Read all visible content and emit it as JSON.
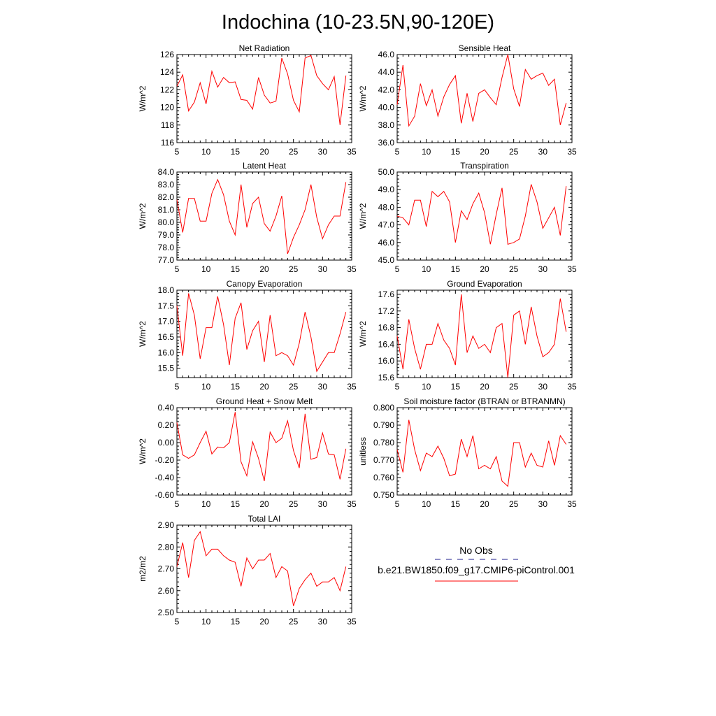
{
  "figure_title": "Indochina (10-23.5N,90-120E)",
  "legend": {
    "obs_label": "No Obs",
    "obs_color": "#1e1e8c",
    "model_label": "b.e21.BW1850.f09_g17.CMIP6-piControl.001",
    "model_color": "#ff0000"
  },
  "colors": {
    "line": "#ff0000",
    "axis": "#000000"
  },
  "chart_data": [
    {
      "type": "line",
      "title": "Net Radiation",
      "ylabel": "W/m^2",
      "xlim": [
        5,
        35
      ],
      "xticks": [
        5,
        10,
        15,
        20,
        25,
        30,
        35
      ],
      "ylim": [
        116,
        126
      ],
      "yticks": [
        116,
        118,
        120,
        122,
        124,
        126
      ],
      "ytick_labels": [
        "116",
        "118",
        "120",
        "122",
        "124",
        "126"
      ],
      "x": [
        5,
        6,
        7,
        8,
        9,
        10,
        11,
        12,
        13,
        14,
        15,
        16,
        17,
        18,
        19,
        20,
        21,
        22,
        23,
        24,
        25,
        26,
        27,
        28,
        29,
        30,
        31,
        32,
        33,
        34
      ],
      "values": [
        122.4,
        123.7,
        119.6,
        120.6,
        122.8,
        120.4,
        124.1,
        122.3,
        123.4,
        122.8,
        122.9,
        120.9,
        120.8,
        119.8,
        123.4,
        121.4,
        120.5,
        120.7,
        125.6,
        123.8,
        120.8,
        119.5,
        125.6,
        125.9,
        123.6,
        122.7,
        122.0,
        123.5,
        118.0,
        123.6
      ]
    },
    {
      "type": "line",
      "title": "Sensible Heat",
      "ylabel": "W/m^2",
      "xlim": [
        5,
        35
      ],
      "xticks": [
        5,
        10,
        15,
        20,
        25,
        30,
        35
      ],
      "ylim": [
        36,
        46
      ],
      "yticks": [
        36,
        38,
        40,
        42,
        44,
        46
      ],
      "ytick_labels": [
        "36.0",
        "38.0",
        "40.0",
        "42.0",
        "44.0",
        "46.0"
      ],
      "x": [
        5,
        6,
        7,
        8,
        9,
        10,
        11,
        12,
        13,
        14,
        15,
        16,
        17,
        18,
        19,
        20,
        21,
        22,
        23,
        24,
        25,
        26,
        27,
        28,
        29,
        30,
        31,
        32,
        33,
        34
      ],
      "values": [
        40.3,
        44.8,
        37.9,
        39.0,
        42.7,
        40.2,
        42.0,
        39.0,
        41.2,
        42.6,
        43.6,
        38.2,
        41.6,
        38.4,
        41.6,
        42.0,
        41.1,
        40.3,
        43.4,
        46.0,
        42.1,
        40.1,
        44.3,
        43.2,
        43.6,
        43.9,
        42.5,
        43.2,
        38.0,
        40.5
      ]
    },
    {
      "type": "line",
      "title": "Latent Heat",
      "ylabel": "W/m^2",
      "xlim": [
        5,
        35
      ],
      "xticks": [
        5,
        10,
        15,
        20,
        25,
        30,
        35
      ],
      "ylim": [
        77,
        84
      ],
      "yticks": [
        77,
        78,
        79,
        80,
        81,
        82,
        83,
        84
      ],
      "ytick_labels": [
        "77.0",
        "78.0",
        "79.0",
        "80.0",
        "81.0",
        "82.0",
        "83.0",
        "84.0"
      ],
      "x": [
        5,
        6,
        7,
        8,
        9,
        10,
        11,
        12,
        13,
        14,
        15,
        16,
        17,
        18,
        19,
        20,
        21,
        22,
        23,
        24,
        25,
        26,
        27,
        28,
        29,
        30,
        31,
        32,
        33,
        34
      ],
      "values": [
        81.8,
        79.2,
        81.9,
        81.9,
        80.1,
        80.1,
        82.3,
        83.4,
        82.2,
        80.1,
        79.0,
        83.0,
        79.6,
        81.5,
        82.0,
        79.9,
        79.3,
        80.5,
        82.1,
        77.5,
        78.8,
        79.8,
        81.0,
        83.0,
        80.4,
        78.7,
        79.8,
        80.5,
        80.5,
        83.2
      ]
    },
    {
      "type": "line",
      "title": "Transpiration",
      "ylabel": "W/m^2",
      "xlim": [
        5,
        35
      ],
      "xticks": [
        5,
        10,
        15,
        20,
        25,
        30,
        35
      ],
      "ylim": [
        45,
        50
      ],
      "yticks": [
        45,
        46,
        47,
        48,
        49,
        50
      ],
      "ytick_labels": [
        "45.0",
        "46.0",
        "47.0",
        "48.0",
        "49.0",
        "50.0"
      ],
      "x": [
        5,
        6,
        7,
        8,
        9,
        10,
        11,
        12,
        13,
        14,
        15,
        16,
        17,
        18,
        19,
        20,
        21,
        22,
        23,
        24,
        25,
        26,
        27,
        28,
        29,
        30,
        31,
        32,
        33,
        34
      ],
      "values": [
        47.5,
        47.4,
        47.0,
        48.4,
        48.4,
        46.9,
        48.9,
        48.6,
        48.9,
        48.3,
        46.0,
        47.8,
        47.3,
        48.2,
        48.8,
        47.7,
        45.9,
        47.6,
        49.1,
        45.9,
        46.0,
        46.2,
        47.5,
        49.3,
        48.3,
        46.8,
        47.4,
        48.0,
        46.4,
        49.2
      ]
    },
    {
      "type": "line",
      "title": "Canopy Evaporation",
      "ylabel": "W/m^2",
      "xlim": [
        5,
        35
      ],
      "xticks": [
        5,
        10,
        15,
        20,
        25,
        30,
        35
      ],
      "ylim": [
        15.2,
        18.0
      ],
      "yticks": [
        15.5,
        16.0,
        16.5,
        17.0,
        17.5,
        18.0
      ],
      "ytick_labels": [
        "15.5",
        "16.0",
        "16.5",
        "17.0",
        "17.5",
        "18.0"
      ],
      "x": [
        5,
        6,
        7,
        8,
        9,
        10,
        11,
        12,
        13,
        14,
        15,
        16,
        17,
        18,
        19,
        20,
        21,
        22,
        23,
        24,
        25,
        26,
        27,
        28,
        29,
        30,
        31,
        32,
        33,
        34
      ],
      "values": [
        17.5,
        15.9,
        17.9,
        17.2,
        15.8,
        16.8,
        16.8,
        17.8,
        16.9,
        15.6,
        17.1,
        17.6,
        16.1,
        16.7,
        17.0,
        15.7,
        17.2,
        15.9,
        16.0,
        15.9,
        15.6,
        16.3,
        17.3,
        16.5,
        15.4,
        15.7,
        16.0,
        16.0,
        16.6,
        17.3
      ]
    },
    {
      "type": "line",
      "title": "Ground Evaporation",
      "ylabel": "W/m^2",
      "xlim": [
        5,
        35
      ],
      "xticks": [
        5,
        10,
        15,
        20,
        25,
        30,
        35
      ],
      "ylim": [
        15.6,
        17.7
      ],
      "yticks": [
        15.6,
        16.0,
        16.4,
        16.8,
        17.2,
        17.6
      ],
      "ytick_labels": [
        "15.6",
        "16.0",
        "16.4",
        "16.8",
        "17.2",
        "17.6"
      ],
      "x": [
        5,
        6,
        7,
        8,
        9,
        10,
        11,
        12,
        13,
        14,
        15,
        16,
        17,
        18,
        19,
        20,
        21,
        22,
        23,
        24,
        25,
        26,
        27,
        28,
        29,
        30,
        31,
        32,
        33,
        34
      ],
      "values": [
        16.6,
        15.8,
        17.0,
        16.3,
        15.8,
        16.4,
        16.4,
        16.9,
        16.5,
        16.3,
        15.9,
        17.6,
        16.2,
        16.6,
        16.3,
        16.4,
        16.2,
        16.8,
        16.9,
        15.6,
        17.1,
        17.2,
        16.4,
        17.3,
        16.6,
        16.1,
        16.2,
        16.4,
        17.5,
        16.7
      ]
    },
    {
      "type": "line",
      "title": "Ground Heat + Snow Melt",
      "ylabel": "W/m^2",
      "xlim": [
        5,
        35
      ],
      "xticks": [
        5,
        10,
        15,
        20,
        25,
        30,
        35
      ],
      "ylim": [
        -0.6,
        0.4
      ],
      "yticks": [
        -0.6,
        -0.4,
        -0.2,
        0.0,
        0.2,
        0.4
      ],
      "ytick_labels": [
        "-0.60",
        "-0.40",
        "-0.20",
        "0.00",
        "0.20",
        "0.40"
      ],
      "x": [
        5,
        6,
        7,
        8,
        9,
        10,
        11,
        12,
        13,
        14,
        15,
        16,
        17,
        18,
        19,
        20,
        21,
        22,
        23,
        24,
        25,
        26,
        27,
        28,
        29,
        30,
        31,
        32,
        33,
        34
      ],
      "values": [
        0.23,
        -0.14,
        -0.18,
        -0.14,
        0.0,
        0.13,
        -0.13,
        -0.05,
        -0.06,
        0.0,
        0.35,
        -0.22,
        -0.38,
        0.01,
        -0.18,
        -0.44,
        0.12,
        0.0,
        0.05,
        0.25,
        -0.09,
        -0.29,
        0.33,
        -0.19,
        -0.17,
        0.11,
        -0.13,
        -0.14,
        -0.42,
        -0.07
      ]
    },
    {
      "type": "line",
      "title": "Soil moisture factor (BTRAN or BTRANMN)",
      "ylabel": "unitless",
      "xlim": [
        5,
        35
      ],
      "xticks": [
        5,
        10,
        15,
        20,
        25,
        30,
        35
      ],
      "ylim": [
        0.75,
        0.8
      ],
      "yticks": [
        0.75,
        0.76,
        0.77,
        0.78,
        0.79,
        0.8
      ],
      "ytick_labels": [
        "0.750",
        "0.760",
        "0.770",
        "0.780",
        "0.790",
        "0.800"
      ],
      "x": [
        5,
        6,
        7,
        8,
        9,
        10,
        11,
        12,
        13,
        14,
        15,
        16,
        17,
        18,
        19,
        20,
        21,
        22,
        23,
        24,
        25,
        26,
        27,
        28,
        29,
        30,
        31,
        32,
        33,
        34
      ],
      "values": [
        0.776,
        0.763,
        0.793,
        0.776,
        0.764,
        0.774,
        0.772,
        0.778,
        0.771,
        0.761,
        0.762,
        0.782,
        0.772,
        0.784,
        0.765,
        0.767,
        0.765,
        0.772,
        0.758,
        0.755,
        0.78,
        0.78,
        0.766,
        0.774,
        0.767,
        0.766,
        0.781,
        0.767,
        0.784,
        0.779
      ]
    },
    {
      "type": "line",
      "title": "Total LAI",
      "ylabel": "m2/m2",
      "xlim": [
        5,
        35
      ],
      "xticks": [
        5,
        10,
        15,
        20,
        25,
        30,
        35
      ],
      "ylim": [
        2.5,
        2.9
      ],
      "yticks": [
        2.5,
        2.6,
        2.7,
        2.8,
        2.9
      ],
      "ytick_labels": [
        "2.50",
        "2.60",
        "2.70",
        "2.80",
        "2.90"
      ],
      "x": [
        5,
        6,
        7,
        8,
        9,
        10,
        11,
        12,
        13,
        14,
        15,
        16,
        17,
        18,
        19,
        20,
        21,
        22,
        23,
        24,
        25,
        26,
        27,
        28,
        29,
        30,
        31,
        32,
        33,
        34
      ],
      "values": [
        2.71,
        2.82,
        2.66,
        2.83,
        2.87,
        2.76,
        2.79,
        2.79,
        2.76,
        2.74,
        2.73,
        2.62,
        2.75,
        2.7,
        2.74,
        2.74,
        2.77,
        2.66,
        2.71,
        2.69,
        2.53,
        2.61,
        2.65,
        2.68,
        2.62,
        2.64,
        2.64,
        2.66,
        2.6,
        2.71
      ]
    }
  ]
}
